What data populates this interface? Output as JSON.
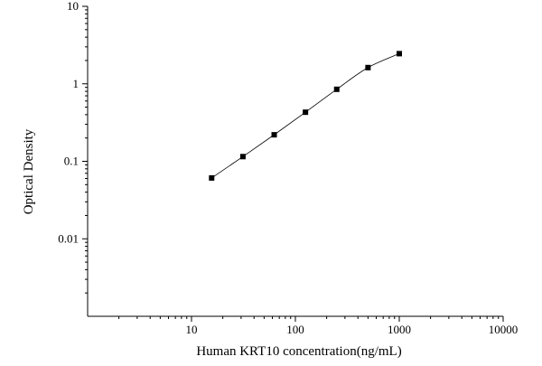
{
  "chart_data": {
    "type": "scatter",
    "xlabel": "Human KRT10 concentration(ng/mL)",
    "ylabel": "Optical Density",
    "x_scale": "log",
    "y_scale": "log",
    "xlim": [
      1,
      10000
    ],
    "ylim": [
      0.001,
      10
    ],
    "x_ticks": [
      {
        "value": 10,
        "label": "10"
      },
      {
        "value": 100,
        "label": "100"
      },
      {
        "value": 1000,
        "label": "1000"
      },
      {
        "value": 10000,
        "label": "10000"
      }
    ],
    "y_ticks": [
      {
        "value": 0.01,
        "label": "0.01"
      },
      {
        "value": 0.1,
        "label": "0.1"
      },
      {
        "value": 1,
        "label": "1"
      },
      {
        "value": 10,
        "label": "10"
      }
    ],
    "grid": false,
    "legend": "none",
    "marker_color": "#000000",
    "curve_color": "#000000",
    "series": [
      {
        "points": [
          {
            "x": 15.625,
            "y": 0.061
          },
          {
            "x": 31.25,
            "y": 0.115
          },
          {
            "x": 62.5,
            "y": 0.22
          },
          {
            "x": 125,
            "y": 0.43
          },
          {
            "x": 250,
            "y": 0.85
          },
          {
            "x": 500,
            "y": 1.62
          },
          {
            "x": 1000,
            "y": 2.45
          }
        ]
      }
    ]
  }
}
